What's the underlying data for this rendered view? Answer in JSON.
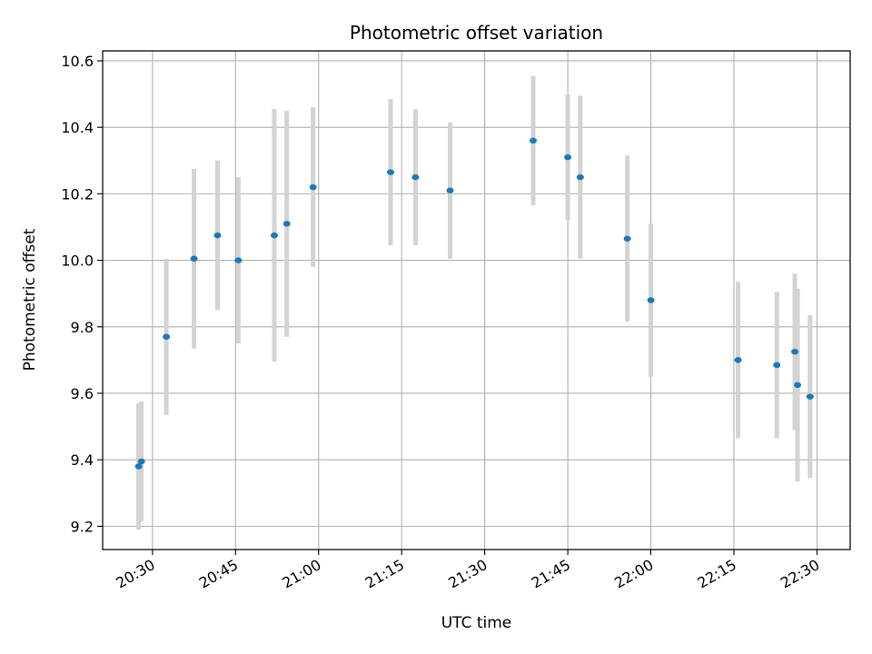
{
  "chart_data": {
    "type": "scatter",
    "title": "Photometric offset variation",
    "xlabel": "UTC time",
    "ylabel": "Photometric offset",
    "x_unit": "UTC time (HH:MM)",
    "xlim": [
      "20:21",
      "22:36"
    ],
    "ylim": [
      9.13,
      10.63
    ],
    "x_ticks": [
      "20:30",
      "20:45",
      "21:00",
      "21:15",
      "21:30",
      "21:45",
      "22:00",
      "22:15",
      "22:30"
    ],
    "y_ticks": [
      "9.2",
      "9.4",
      "9.6",
      "9.8",
      "10.0",
      "10.2",
      "10.4",
      "10.6"
    ],
    "grid": true,
    "series": [
      {
        "marker_color": "#1f77b4",
        "errorbar_color": "#d3d3d3",
        "points": [
          {
            "x": "20:27:30",
            "y": 9.38,
            "err": 0.19
          },
          {
            "x": "20:28:00",
            "y": 9.395,
            "err": 0.18
          },
          {
            "x": "20:32:30",
            "y": 9.77,
            "err": 0.235
          },
          {
            "x": "20:37:30",
            "y": 10.005,
            "err": 0.27
          },
          {
            "x": "20:41:45",
            "y": 10.075,
            "err": 0.225
          },
          {
            "x": "20:45:30",
            "y": 10.0,
            "err": 0.25
          },
          {
            "x": "20:52:00",
            "y": 10.075,
            "err": 0.38
          },
          {
            "x": "20:54:15",
            "y": 10.11,
            "err": 0.34
          },
          {
            "x": "20:59:00",
            "y": 10.22,
            "err": 0.24
          },
          {
            "x": "21:13:00",
            "y": 10.265,
            "err": 0.22
          },
          {
            "x": "21:17:30",
            "y": 10.25,
            "err": 0.205
          },
          {
            "x": "21:23:45",
            "y": 10.21,
            "err": 0.205
          },
          {
            "x": "21:38:45",
            "y": 10.36,
            "err": 0.195
          },
          {
            "x": "21:45:00",
            "y": 10.31,
            "err": 0.19
          },
          {
            "x": "21:47:15",
            "y": 10.25,
            "err": 0.245
          },
          {
            "x": "21:55:45",
            "y": 10.065,
            "err": 0.25
          },
          {
            "x": "22:00:00",
            "y": 9.88,
            "err": 0.23
          },
          {
            "x": "22:15:45",
            "y": 9.7,
            "err": 0.235
          },
          {
            "x": "22:22:45",
            "y": 9.685,
            "err": 0.22
          },
          {
            "x": "22:26:00",
            "y": 9.725,
            "err": 0.235
          },
          {
            "x": "22:26:30",
            "y": 9.625,
            "err": 0.29
          },
          {
            "x": "22:28:45",
            "y": 9.59,
            "err": 0.245
          }
        ]
      }
    ]
  }
}
